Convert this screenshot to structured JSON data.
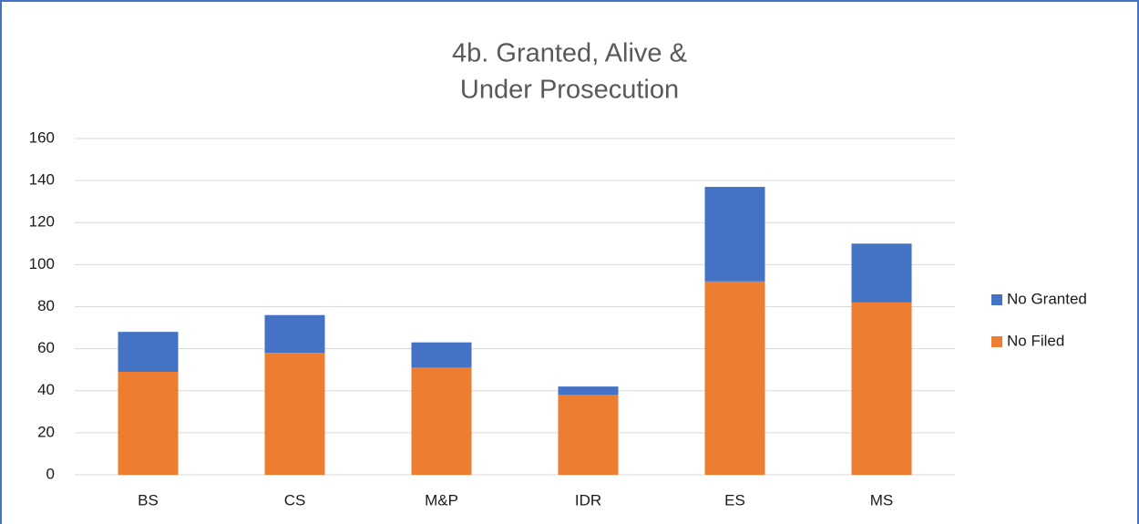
{
  "chart_data": {
    "type": "stacked_bar",
    "title": [
      "4b. Granted, Alive &",
      "Under Prosecution"
    ],
    "categories": [
      "BS",
      "CS",
      "M&P",
      "IDR",
      "ES",
      "MS"
    ],
    "series": [
      {
        "name": "No Filed",
        "color": "#ed7d31",
        "values": [
          49,
          58,
          51,
          38,
          92,
          82
        ]
      },
      {
        "name": "No Granted",
        "color": "#4472c4",
        "values": [
          19,
          18,
          12,
          4,
          45,
          28
        ]
      }
    ],
    "ylim": [
      0,
      160
    ],
    "yticks": [
      0,
      20,
      40,
      60,
      80,
      100,
      120,
      140,
      160
    ],
    "grid": true,
    "legend": "right"
  }
}
